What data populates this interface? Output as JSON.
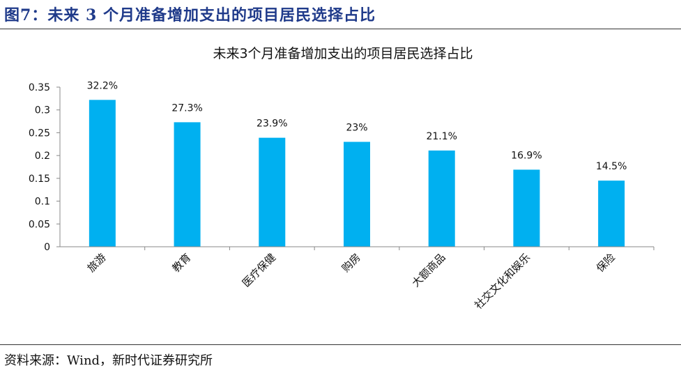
{
  "figure": {
    "label": "图7：",
    "title": "未来 3 个月准备增加支出的项目居民选择占比"
  },
  "source": "资料来源：Wind，新时代证券研究所",
  "colors": {
    "bar": "#00b0f0",
    "header": "#1f3a8a",
    "axis": "#888888"
  },
  "chart_data": {
    "type": "bar",
    "title": "未来3个月准备增加支出的项目居民选择占比",
    "categories": [
      "旅游",
      "教育",
      "医疗保健",
      "购房",
      "大额商品",
      "社交文化和娱乐",
      "保险"
    ],
    "values": [
      0.322,
      0.273,
      0.239,
      0.23,
      0.211,
      0.169,
      0.145
    ],
    "data_labels": [
      "32.2%",
      "27.3%",
      "23.9%",
      "23%",
      "21.1%",
      "16.9%",
      "14.5%"
    ],
    "y_ticks": [
      "0",
      "0.05",
      "0.1",
      "0.15",
      "0.2",
      "0.25",
      "0.3",
      "0.35"
    ],
    "ylim": [
      0,
      0.35
    ],
    "xlabel": "",
    "ylabel": "",
    "grid": false,
    "legend": "none"
  }
}
